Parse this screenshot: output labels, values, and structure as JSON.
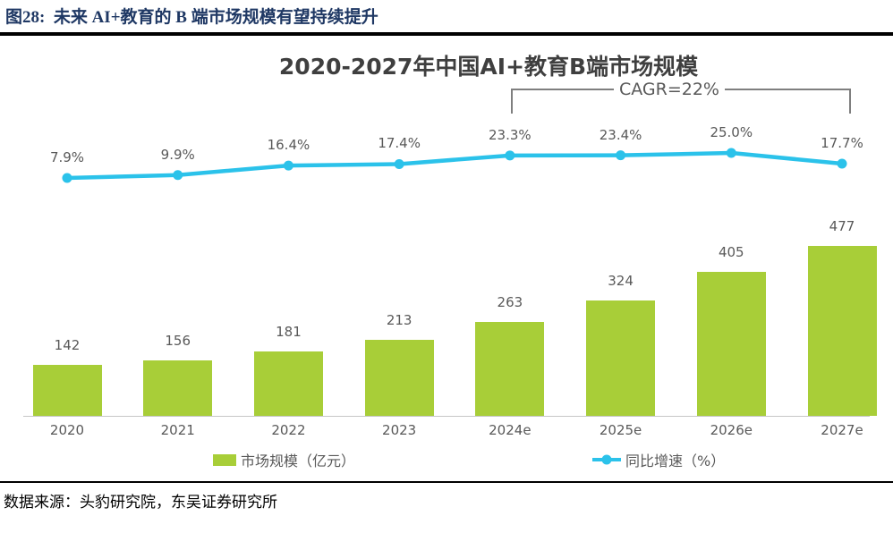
{
  "figure": {
    "header": "图28:  未来 AI+教育的 B 端市场规模有望持续提升",
    "source": "数据来源：头豹研究院，东吴证券研究所"
  },
  "colors": {
    "bar": "#a8ce38",
    "line": "#2bc2ea",
    "data_label": "#595959",
    "header_text": "#1f3864",
    "annotation": "#7f7f7f",
    "axis_line": "#c6c6c6"
  },
  "chart_data": {
    "type": "bar",
    "subtype": "combo-bar-line",
    "title": "2020-2027年中国AI+教育B端市场规模",
    "categories": [
      "2020",
      "2021",
      "2022",
      "2023",
      "2024e",
      "2025e",
      "2026e",
      "2027e"
    ],
    "series": [
      {
        "name": "市场规模（亿元）",
        "type": "bar",
        "color": "#a8ce38",
        "values": [
          142,
          156,
          181,
          213,
          263,
          324,
          405,
          477
        ]
      },
      {
        "name": "同比增速（%）",
        "type": "line",
        "color": "#2bc2ea",
        "values": [
          7.9,
          9.9,
          16.4,
          17.4,
          23.3,
          23.4,
          25.0,
          17.7
        ],
        "label_suffix": "%"
      }
    ],
    "annotation": {
      "text": "CAGR=22%",
      "from_category": "2024e",
      "to_category": "2027e"
    },
    "xlabel": "",
    "ylabel": "",
    "axes_hidden": true,
    "grid": false,
    "legend_position": "bottom",
    "data_labels_shown": true
  }
}
